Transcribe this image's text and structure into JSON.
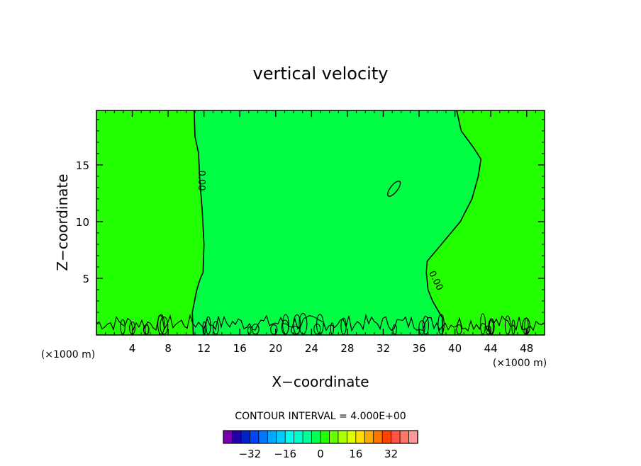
{
  "chart_data": {
    "type": "heatmap",
    "title": "vertical velocity",
    "xlabel": "X−coordinate",
    "ylabel": "Z−coordinate",
    "x_unit_left": "(×1000 m)",
    "x_unit_right": "(×1000 m)",
    "xlim": [
      0,
      50
    ],
    "ylim": [
      0,
      19.8
    ],
    "x_ticks": [
      4,
      8,
      12,
      16,
      20,
      24,
      28,
      32,
      36,
      40,
      44,
      48
    ],
    "y_ticks": [
      5,
      10,
      15
    ],
    "grid": false,
    "contour_interval_label": "CONTOUR INTERVAL = 4.000E+00",
    "contour_labels": [
      "0.00",
      "0.00"
    ],
    "fill_regions": [
      {
        "name": "w between 0 and 4 (left)",
        "color": "#22ff00"
      },
      {
        "name": "w between -4 and 0 (center)",
        "color": "#00ff44"
      },
      {
        "name": "w between 0 and 4 (right)",
        "color": "#22ff00"
      }
    ],
    "zero_contour_left_x": [
      [
        0.2,
        10.8
      ],
      [
        2.0,
        10.7
      ],
      [
        4.0,
        11.2
      ],
      [
        5.0,
        11.6
      ],
      [
        5.5,
        11.9
      ],
      [
        8.0,
        12.0
      ],
      [
        11.0,
        11.8
      ],
      [
        14.0,
        11.5
      ],
      [
        16.0,
        11.4
      ],
      [
        17.5,
        11.0
      ],
      [
        19.8,
        10.9
      ]
    ],
    "zero_contour_right_x": [
      [
        1.5,
        38.6
      ],
      [
        3.0,
        37.5
      ],
      [
        4.0,
        37.0
      ],
      [
        5.5,
        36.8
      ],
      [
        6.5,
        36.9
      ],
      [
        8.0,
        38.5
      ],
      [
        10.0,
        40.6
      ],
      [
        12.0,
        41.9
      ],
      [
        14.0,
        42.6
      ],
      [
        15.5,
        42.9
      ],
      [
        16.5,
        42.1
      ],
      [
        18.0,
        40.7
      ],
      [
        19.8,
        40.2
      ]
    ],
    "colorbar": {
      "colors": [
        "#7700aa",
        "#2200aa",
        "#0022cc",
        "#0044ff",
        "#0077ff",
        "#00aaff",
        "#00ccff",
        "#00ffee",
        "#00ffcc",
        "#00ff99",
        "#00ff55",
        "#22ff00",
        "#66ff00",
        "#aaff00",
        "#ddff00",
        "#ffdd00",
        "#ffaa00",
        "#ff7700",
        "#ff4400",
        "#ff5544",
        "#ff7766",
        "#ff9999"
      ],
      "tick_labels": [
        "−32",
        "−16",
        "0",
        "16",
        "32"
      ]
    }
  }
}
